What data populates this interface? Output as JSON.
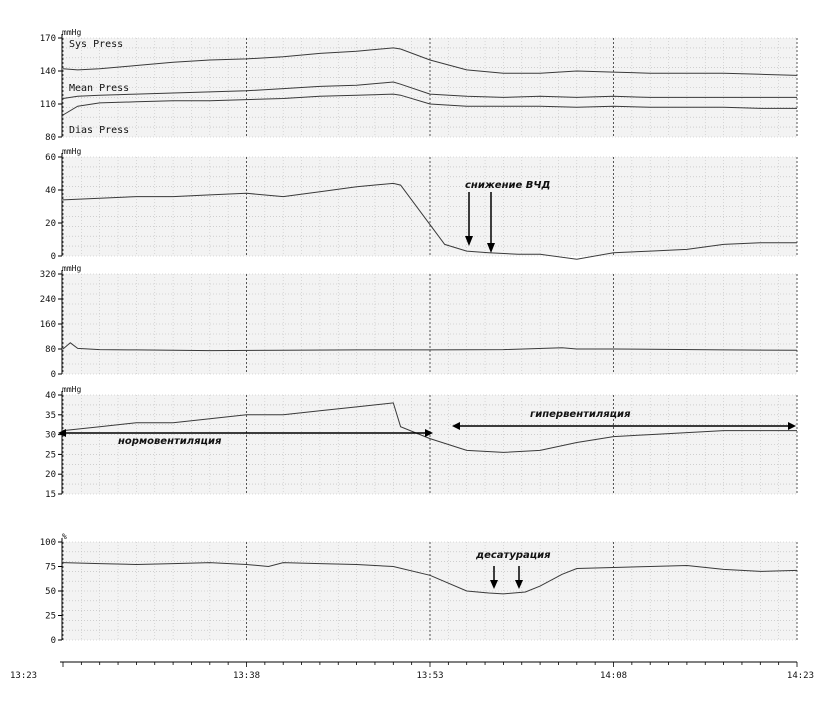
{
  "chart_data": [
    {
      "type": "line",
      "unit": "mmHg",
      "ylim": [
        80,
        170
      ],
      "yticks": [
        80,
        110,
        140,
        170
      ],
      "grid": true,
      "series": [
        {
          "name": "Sys Press",
          "x": [
            0,
            2,
            5,
            10,
            15,
            20,
            25,
            30,
            35,
            40,
            45,
            46,
            50,
            55,
            60,
            65,
            70,
            75,
            80,
            85,
            90,
            95,
            100
          ],
          "values": [
            142,
            141,
            142,
            145,
            148,
            150,
            151,
            153,
            156,
            158,
            161,
            160,
            150,
            141,
            138,
            138,
            140,
            139,
            138,
            138,
            138,
            137,
            136
          ]
        },
        {
          "name": "Mean Press",
          "x": [
            0,
            2,
            5,
            10,
            15,
            20,
            25,
            30,
            35,
            40,
            45,
            46,
            50,
            55,
            60,
            65,
            70,
            75,
            80,
            85,
            90,
            95,
            100
          ],
          "values": [
            115,
            117,
            118,
            119,
            120,
            121,
            122,
            124,
            126,
            127,
            130,
            128,
            119,
            117,
            116,
            117,
            116,
            117,
            116,
            116,
            116,
            116,
            116
          ]
        },
        {
          "name": "Dias Press",
          "x": [
            0,
            2,
            5,
            10,
            15,
            20,
            25,
            30,
            35,
            40,
            45,
            46,
            50,
            55,
            60,
            65,
            70,
            75,
            80,
            85,
            90,
            95,
            100
          ],
          "values": [
            100,
            108,
            111,
            112,
            113,
            113,
            114,
            115,
            117,
            118,
            119,
            118,
            110,
            108,
            108,
            108,
            107,
            108,
            107,
            107,
            107,
            106,
            106
          ]
        }
      ]
    },
    {
      "type": "line",
      "unit": "mmHg",
      "ylim": [
        0,
        60
      ],
      "yticks": [
        0,
        20,
        40,
        60
      ],
      "grid": true,
      "series": [
        {
          "name": "",
          "x": [
            0,
            5,
            10,
            15,
            20,
            25,
            30,
            35,
            40,
            45,
            46,
            49,
            52,
            55,
            58,
            62,
            65,
            70,
            75,
            80,
            85,
            90,
            95,
            100
          ],
          "values": [
            34,
            35,
            36,
            36,
            37,
            38,
            36,
            39,
            42,
            44,
            43,
            25,
            7,
            3,
            2,
            1,
            1,
            -2,
            2,
            3,
            4,
            7,
            8,
            8
          ]
        }
      ],
      "annotations": [
        {
          "text": "снижение ВЧД"
        }
      ]
    },
    {
      "type": "line",
      "unit": "mmHg",
      "ylim": [
        0,
        320
      ],
      "yticks": [
        0,
        80,
        160,
        240,
        320
      ],
      "grid": true,
      "series": [
        {
          "name": "",
          "x": [
            0,
            1,
            2,
            5,
            10,
            20,
            30,
            40,
            50,
            60,
            68,
            70,
            75,
            80,
            90,
            100
          ],
          "values": [
            80,
            100,
            82,
            78,
            77,
            75,
            76,
            77,
            77,
            78,
            84,
            80,
            80,
            79,
            77,
            76
          ]
        }
      ]
    },
    {
      "type": "line",
      "unit": "mmHg",
      "ylim": [
        15,
        40
      ],
      "yticks": [
        15,
        20,
        25,
        30,
        35,
        40
      ],
      "grid": true,
      "series": [
        {
          "name": "",
          "x": [
            0,
            5,
            10,
            15,
            20,
            25,
            30,
            35,
            40,
            45,
            46,
            50,
            55,
            60,
            65,
            70,
            75,
            80,
            85,
            90,
            95,
            100
          ],
          "values": [
            31,
            32,
            33,
            33,
            34,
            35,
            35,
            36,
            37,
            38,
            32,
            29,
            26,
            25.5,
            26,
            28,
            29.5,
            30,
            30.5,
            31,
            31,
            31
          ]
        }
      ],
      "annotations": [
        {
          "text": "нормовентиляция"
        },
        {
          "text": "гипервентиляция"
        }
      ]
    },
    {
      "type": "line",
      "unit": "%",
      "ylim": [
        0,
        100
      ],
      "yticks": [
        0,
        25,
        50,
        75,
        100
      ],
      "grid": true,
      "series": [
        {
          "name": "",
          "x": [
            0,
            5,
            10,
            15,
            20,
            25,
            28,
            30,
            35,
            40,
            45,
            50,
            55,
            58,
            60,
            63,
            65,
            68,
            70,
            75,
            80,
            85,
            90,
            95,
            100
          ],
          "values": [
            79,
            78,
            77,
            78,
            79,
            77,
            75,
            79,
            78,
            77,
            75,
            66,
            50,
            48,
            47,
            49,
            55,
            67,
            73,
            74,
            75,
            76,
            72,
            70,
            71
          ]
        }
      ],
      "annotations": [
        {
          "text": "десатурация"
        }
      ]
    }
  ],
  "x_axis": {
    "ticks": [
      {
        "pos": 0,
        "label": "13:23"
      },
      {
        "pos": 25,
        "label": "13:38"
      },
      {
        "pos": 50,
        "label": "13:53"
      },
      {
        "pos": 75,
        "label": "14:08"
      },
      {
        "pos": 100,
        "label": "14:23"
      }
    ]
  }
}
